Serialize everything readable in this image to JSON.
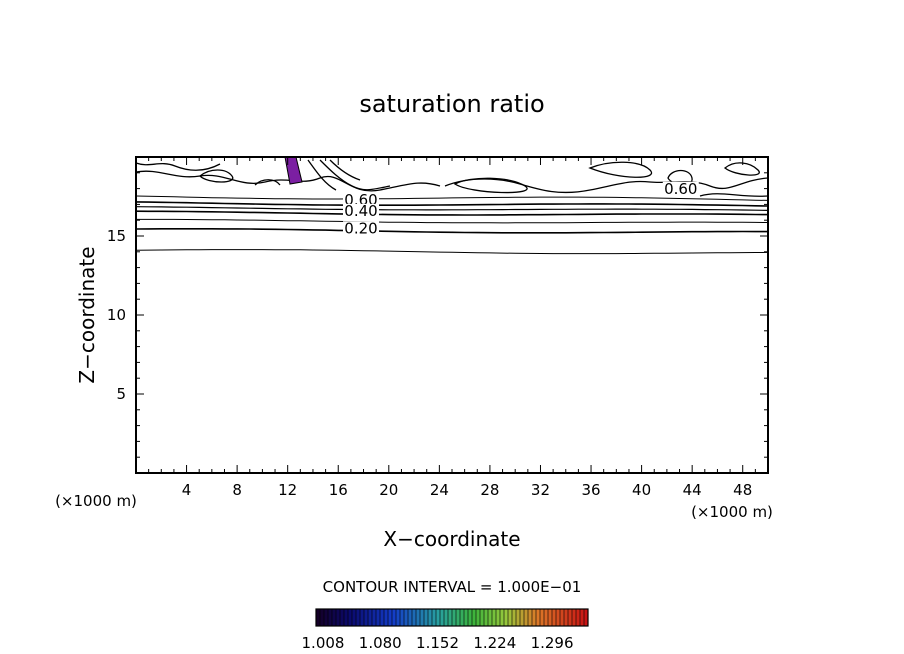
{
  "chart_data": {
    "type": "contour",
    "title": "saturation ratio",
    "xlabel": "X−coordinate",
    "ylabel": "Z−coordinate",
    "x_unit": "(×1000 m)",
    "y_unit": "(×1000 m)",
    "xlim": [
      0,
      50
    ],
    "ylim": [
      0,
      20
    ],
    "x_ticks": [
      4,
      8,
      12,
      16,
      20,
      24,
      28,
      32,
      36,
      40,
      44,
      48
    ],
    "y_ticks": [
      5,
      10,
      15
    ],
    "contour_labels": [
      {
        "text": "0.60",
        "x": 17.8,
        "z": 17.1
      },
      {
        "text": "0.40",
        "x": 17.8,
        "z": 16.4
      },
      {
        "text": "0.20",
        "x": 17.8,
        "z": 15.3
      },
      {
        "text": "0.60",
        "x": 43.1,
        "z": 17.8
      }
    ],
    "contour_interval_text": "CONTOUR INTERVAL = 1.000E−01",
    "colorbar_ticks": [
      "1.008",
      "1.080",
      "1.152",
      "1.224",
      "1.296"
    ],
    "colorbar_range": [
      1.008,
      1.35
    ],
    "colors": {
      "line": "#000000",
      "fill": "#7b1fa2",
      "background": "#ffffff"
    }
  }
}
